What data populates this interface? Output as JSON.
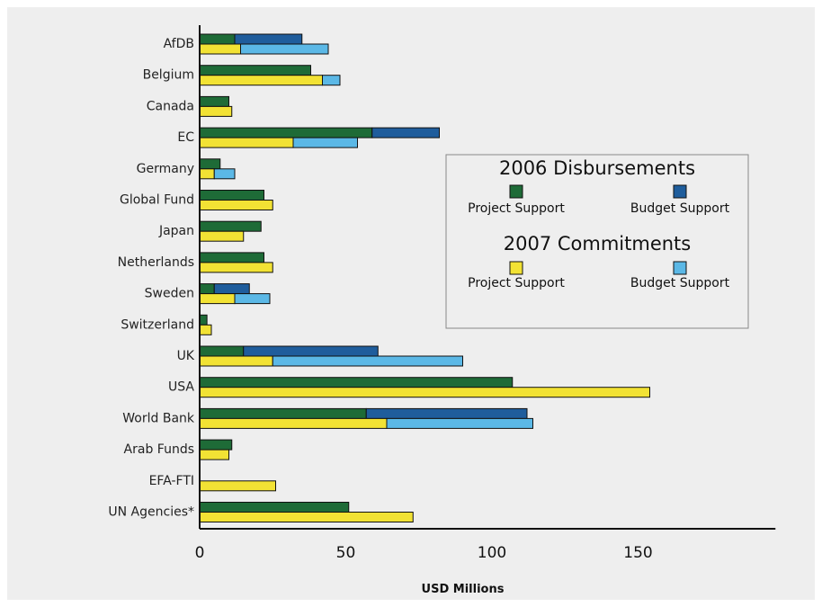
{
  "chart_data": {
    "type": "bar",
    "orientation": "horizontal",
    "categories": [
      "AfDB",
      "Belgium",
      "Canada",
      "EC",
      "Germany",
      "Global Fund",
      "Japan",
      "Netherlands",
      "Sweden",
      "Switzerland",
      "UK",
      "USA",
      "World Bank",
      "Arab Funds",
      "EFA-FTI",
      "UN Agencies*"
    ],
    "groups": [
      {
        "name": "2006 Disbursements",
        "series": [
          {
            "name": "Project Support",
            "color": "#1e6b37",
            "values": [
              12,
              38,
              10,
              59,
              7,
              22,
              21,
              22,
              5,
              2.5,
              15,
              107,
              57,
              11,
              0,
              51
            ]
          },
          {
            "name": "Budget Support",
            "color": "#1f5d9c",
            "values": [
              23,
              0,
              0,
              23,
              0,
              0,
              0,
              0,
              12,
              0,
              46,
              0,
              55,
              0,
              0,
              0
            ]
          }
        ]
      },
      {
        "name": "2007 Commitments",
        "series": [
          {
            "name": "Project Support",
            "color": "#f2e234",
            "values": [
              14,
              42,
              11,
              32,
              5,
              25,
              15,
              25,
              12,
              4,
              25,
              154,
              64,
              10,
              26,
              73
            ]
          },
          {
            "name": "Budget Support",
            "color": "#5bb8e6",
            "values": [
              30,
              6,
              0,
              22,
              7,
              0,
              0,
              0,
              12,
              0,
              65,
              0,
              50,
              0,
              0,
              0
            ]
          }
        ]
      }
    ],
    "stacked": true,
    "x_ticks": [
      0,
      50,
      100,
      150
    ],
    "xlim": [
      0,
      197
    ],
    "xlabel": "USD Millions",
    "legend_position": "right-middle",
    "grid": false
  }
}
